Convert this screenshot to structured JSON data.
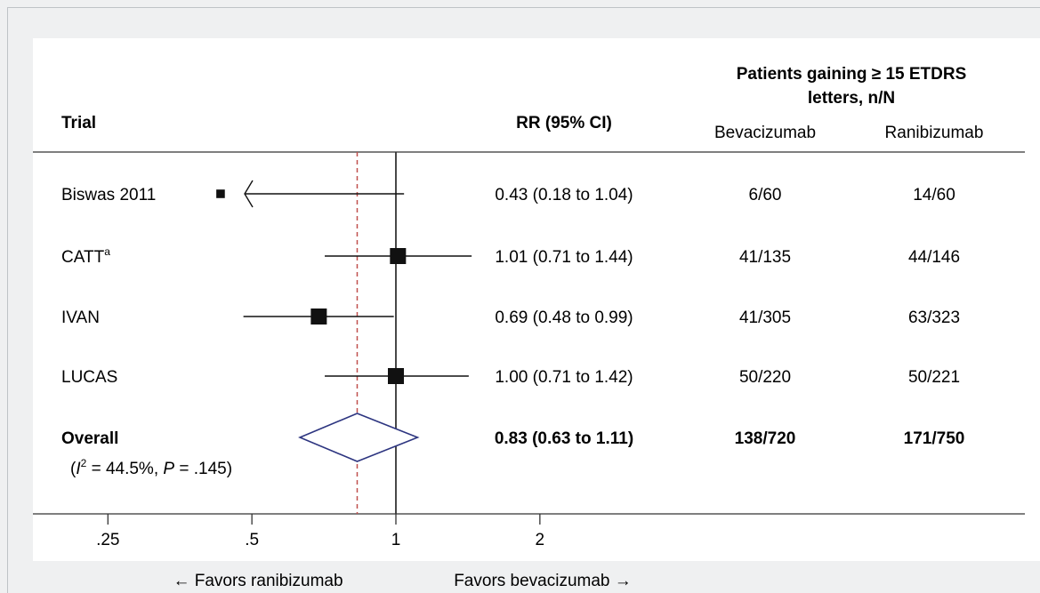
{
  "header": {
    "trial": "Trial",
    "rr": "RR (95% CI)",
    "patients_line1": "Patients gaining ≥ 15 ETDRS",
    "patients_line2": "letters, n/N",
    "bevacizumab": "Bevacizumab",
    "ranibizumab": "Ranibizumab"
  },
  "chart_data": {
    "type": "forest",
    "x_scale": "log",
    "xlim": [
      0.2,
      2.2
    ],
    "reference_line": 1,
    "overall_dashed_line": 0.83,
    "x_ticks": [
      {
        "value": 0.25,
        "label": ".25"
      },
      {
        "value": 0.5,
        "label": ".5"
      },
      {
        "value": 1,
        "label": "1"
      },
      {
        "value": 2,
        "label": "2"
      }
    ],
    "studies": [
      {
        "name": "Biswas 2011",
        "superscript": "",
        "rr": 0.43,
        "lo": 0.18,
        "hi": 1.04,
        "truncated_left": true,
        "weight": 0.3,
        "rr_text": "0.43 (0.18 to 1.04)",
        "bev": "6/60",
        "ran": "14/60"
      },
      {
        "name": "CATT",
        "superscript": "a",
        "rr": 1.01,
        "lo": 0.71,
        "hi": 1.44,
        "truncated_left": false,
        "weight": 1.0,
        "rr_text": "1.01 (0.71 to 1.44)",
        "bev": "41/135",
        "ran": "44/146"
      },
      {
        "name": "IVAN",
        "superscript": "",
        "rr": 0.69,
        "lo": 0.48,
        "hi": 0.99,
        "truncated_left": false,
        "weight": 1.0,
        "rr_text": "0.69 (0.48 to 0.99)",
        "bev": "41/305",
        "ran": "63/323"
      },
      {
        "name": "LUCAS",
        "superscript": "",
        "rr": 1.0,
        "lo": 0.71,
        "hi": 1.42,
        "truncated_left": false,
        "weight": 1.0,
        "rr_text": "1.00 (0.71 to 1.42)",
        "bev": "50/220",
        "ran": "50/221"
      }
    ],
    "overall": {
      "name": "Overall",
      "heterogeneity_i": "I",
      "heterogeneity_sup": "2",
      "heterogeneity_value": " = 44.5%, ",
      "heterogeneity_p": "P",
      "heterogeneity_p_value": " = .145)",
      "heterogeneity_open": "(",
      "rr": 0.83,
      "lo": 0.63,
      "hi": 1.11,
      "rr_text": "0.83 (0.63 to 1.11)",
      "bev": "138/720",
      "ran": "171/750"
    },
    "favors_left": "← Favors ranibizumab",
    "favors_right": "Favors bevacizumab →",
    "colors": {
      "diamond": "#2d3580",
      "dashed": "#c0504d",
      "marks": "#111111"
    }
  }
}
